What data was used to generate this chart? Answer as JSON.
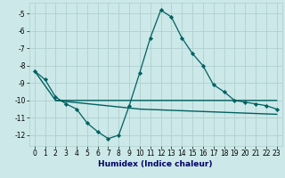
{
  "xlabel": "Humidex (Indice chaleur)",
  "ylabel": "",
  "bg_color": "#cce8e8",
  "grid_color": "#b0d0d0",
  "line_color": "#006060",
  "xlim": [
    -0.5,
    23.5
  ],
  "ylim": [
    -12.6,
    -4.4
  ],
  "yticks": [
    -5,
    -6,
    -7,
    -8,
    -9,
    -10,
    -11,
    -12
  ],
  "xticks": [
    0,
    1,
    2,
    3,
    4,
    5,
    6,
    7,
    8,
    9,
    10,
    11,
    12,
    13,
    14,
    15,
    16,
    17,
    18,
    19,
    20,
    21,
    22,
    23
  ],
  "series1_x": [
    0,
    1,
    2,
    3,
    4,
    5,
    6,
    7,
    8,
    9,
    10,
    11,
    12,
    13,
    14,
    15,
    16,
    17,
    18,
    19,
    20,
    21,
    22,
    23
  ],
  "series1_y": [
    -8.3,
    -8.8,
    -9.8,
    -10.2,
    -10.5,
    -11.3,
    -11.8,
    -12.2,
    -12.0,
    -10.3,
    -8.4,
    -6.4,
    -4.8,
    -5.2,
    -6.4,
    -7.3,
    -8.0,
    -9.1,
    -9.5,
    -10.0,
    -10.1,
    -10.2,
    -10.3,
    -10.5
  ],
  "series2_x": [
    0,
    2,
    10,
    23
  ],
  "series2_y": [
    -8.3,
    -10.0,
    -10.0,
    -10.0
  ],
  "series3_x": [
    2,
    10,
    23
  ],
  "series3_y": [
    -10.0,
    -10.5,
    -10.8
  ],
  "xlabel_color": "#000066",
  "xlabel_fontsize": 6.5,
  "tick_fontsize": 5.5
}
